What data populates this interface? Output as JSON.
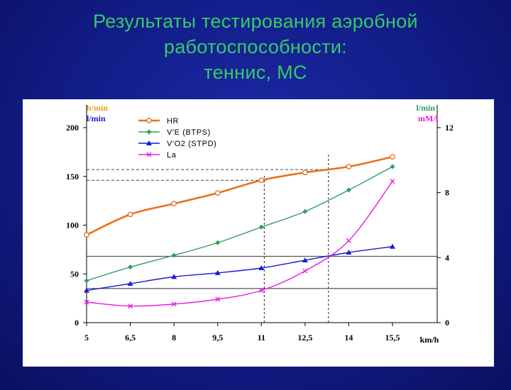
{
  "slide": {
    "title_line1": "Результаты тестирования аэробной",
    "title_line2": "работоспособности:",
    "title_line3": "теннис, МС"
  },
  "colors": {
    "hr": "#e8721c",
    "ve": "#2e9e5e",
    "vo2": "#1a1adb",
    "la": "#e81ce0",
    "title": "#33cc66",
    "left_unit": "#e8a01c",
    "right_unit_top": "#2e9e5e",
    "right_unit_bottom": "#e81ce0"
  },
  "chart_data": {
    "type": "line",
    "title": "",
    "xlabel": "km/h",
    "left_axis_units": [
      "b/min",
      "l/min"
    ],
    "right_axis_units": [
      "l/min",
      "mM/l"
    ],
    "x": [
      5,
      6.5,
      8,
      9.5,
      11,
      12.5,
      14,
      15.5
    ],
    "x_tick_labels": [
      "5",
      "6,5",
      "8",
      "9,5",
      "11",
      "12,5",
      "14",
      "15,5"
    ],
    "ylim_left": [
      0,
      200
    ],
    "y_ticks_left": [
      0,
      50,
      100,
      150,
      200
    ],
    "ylim_right": [
      0,
      13
    ],
    "y_ticks_right": [
      0,
      4,
      8,
      12
    ],
    "legend_position": "top-left",
    "series": [
      {
        "name": "HR",
        "marker": "circle",
        "values": [
          90,
          111,
          122,
          133,
          146,
          154,
          160,
          170
        ]
      },
      {
        "name": "V'E (BTPS)",
        "marker": "diamond",
        "values": [
          43,
          57,
          69,
          82,
          98,
          114,
          136,
          160
        ]
      },
      {
        "name": "V'O2 (STPD)",
        "marker": "triangle",
        "values": [
          33,
          40,
          47,
          51,
          56,
          64,
          72,
          78
        ]
      },
      {
        "name": "La",
        "marker": "x",
        "values": [
          21,
          17,
          19,
          24,
          33,
          53,
          84,
          145
        ]
      }
    ],
    "reference_lines": {
      "horizontal_solid": [
        35,
        68
      ],
      "horizontal_dashed": [
        157,
        146
      ],
      "vertical_dotted_x": [
        11.1,
        13.3
      ]
    }
  }
}
